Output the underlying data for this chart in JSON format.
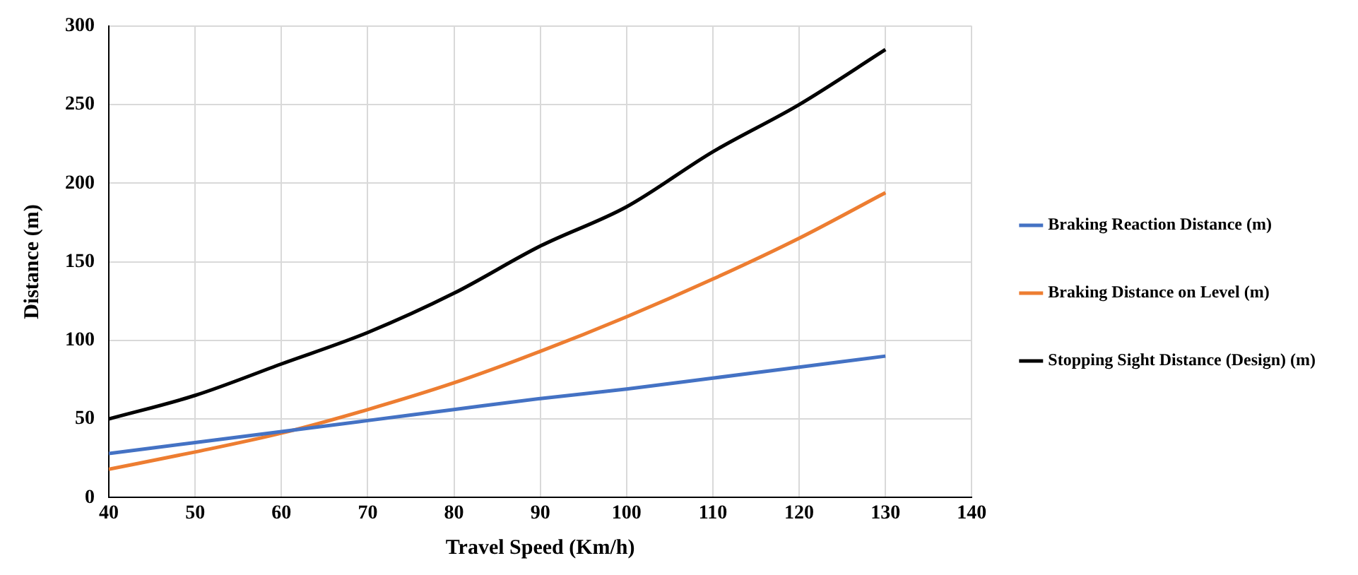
{
  "chart_data": {
    "type": "line",
    "xlabel": "Travel Speed (Km/h)",
    "ylabel": "Distance (m)",
    "x": [
      40,
      50,
      60,
      70,
      80,
      90,
      100,
      110,
      120,
      130
    ],
    "xlim": [
      40,
      140
    ],
    "xticks": [
      40,
      50,
      60,
      70,
      80,
      90,
      100,
      110,
      120,
      130,
      140
    ],
    "ylim": [
      0,
      300
    ],
    "yticks": [
      0,
      50,
      100,
      150,
      200,
      250,
      300
    ],
    "grid": true,
    "legend": "right",
    "marker": "none",
    "series": [
      {
        "name": "Braking Reaction Distance (m)",
        "color": "#4472c4",
        "values": [
          28,
          35,
          42,
          49,
          56,
          63,
          69,
          76,
          83,
          90
        ]
      },
      {
        "name": "Braking Distance on Level (m)",
        "color": "#ed7d31",
        "values": [
          18,
          29,
          41,
          56,
          73,
          93,
          115,
          139,
          165,
          194
        ]
      },
      {
        "name": "Stopping Sight Distance (Design) (m)",
        "color": "#000000",
        "values": [
          50,
          65,
          85,
          105,
          130,
          160,
          185,
          220,
          250,
          285
        ]
      }
    ]
  }
}
